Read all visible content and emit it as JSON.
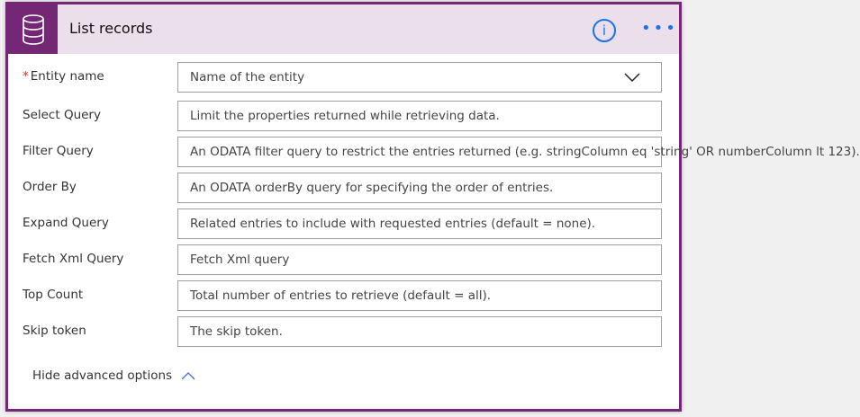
{
  "header": {
    "title": "List records",
    "info_icon": "info-icon",
    "more_icon": "more-icon",
    "icon": "database-icon",
    "accent": "#742774"
  },
  "fields": [
    {
      "label": "Entity name",
      "required": "*",
      "placeholder": "Name of the entity",
      "type": "dropdown"
    },
    {
      "label": "Select Query",
      "placeholder": "Limit the properties returned while retrieving data."
    },
    {
      "label": "Filter Query",
      "placeholder": "An ODATA filter query to restrict the entries returned (e.g. stringColumn eq 'string' OR numberColumn lt 123)."
    },
    {
      "label": "Order By",
      "placeholder": "An ODATA orderBy query for specifying the order of entries."
    },
    {
      "label": "Expand Query",
      "placeholder": "Related entries to include with requested entries (default = none)."
    },
    {
      "label": "Fetch Xml Query",
      "placeholder": "Fetch Xml query"
    },
    {
      "label": "Top Count",
      "placeholder": "Total number of entries to retrieve (default = all)."
    },
    {
      "label": "Skip token",
      "placeholder": "The skip token."
    }
  ],
  "advanced": {
    "label": "Hide advanced options"
  }
}
